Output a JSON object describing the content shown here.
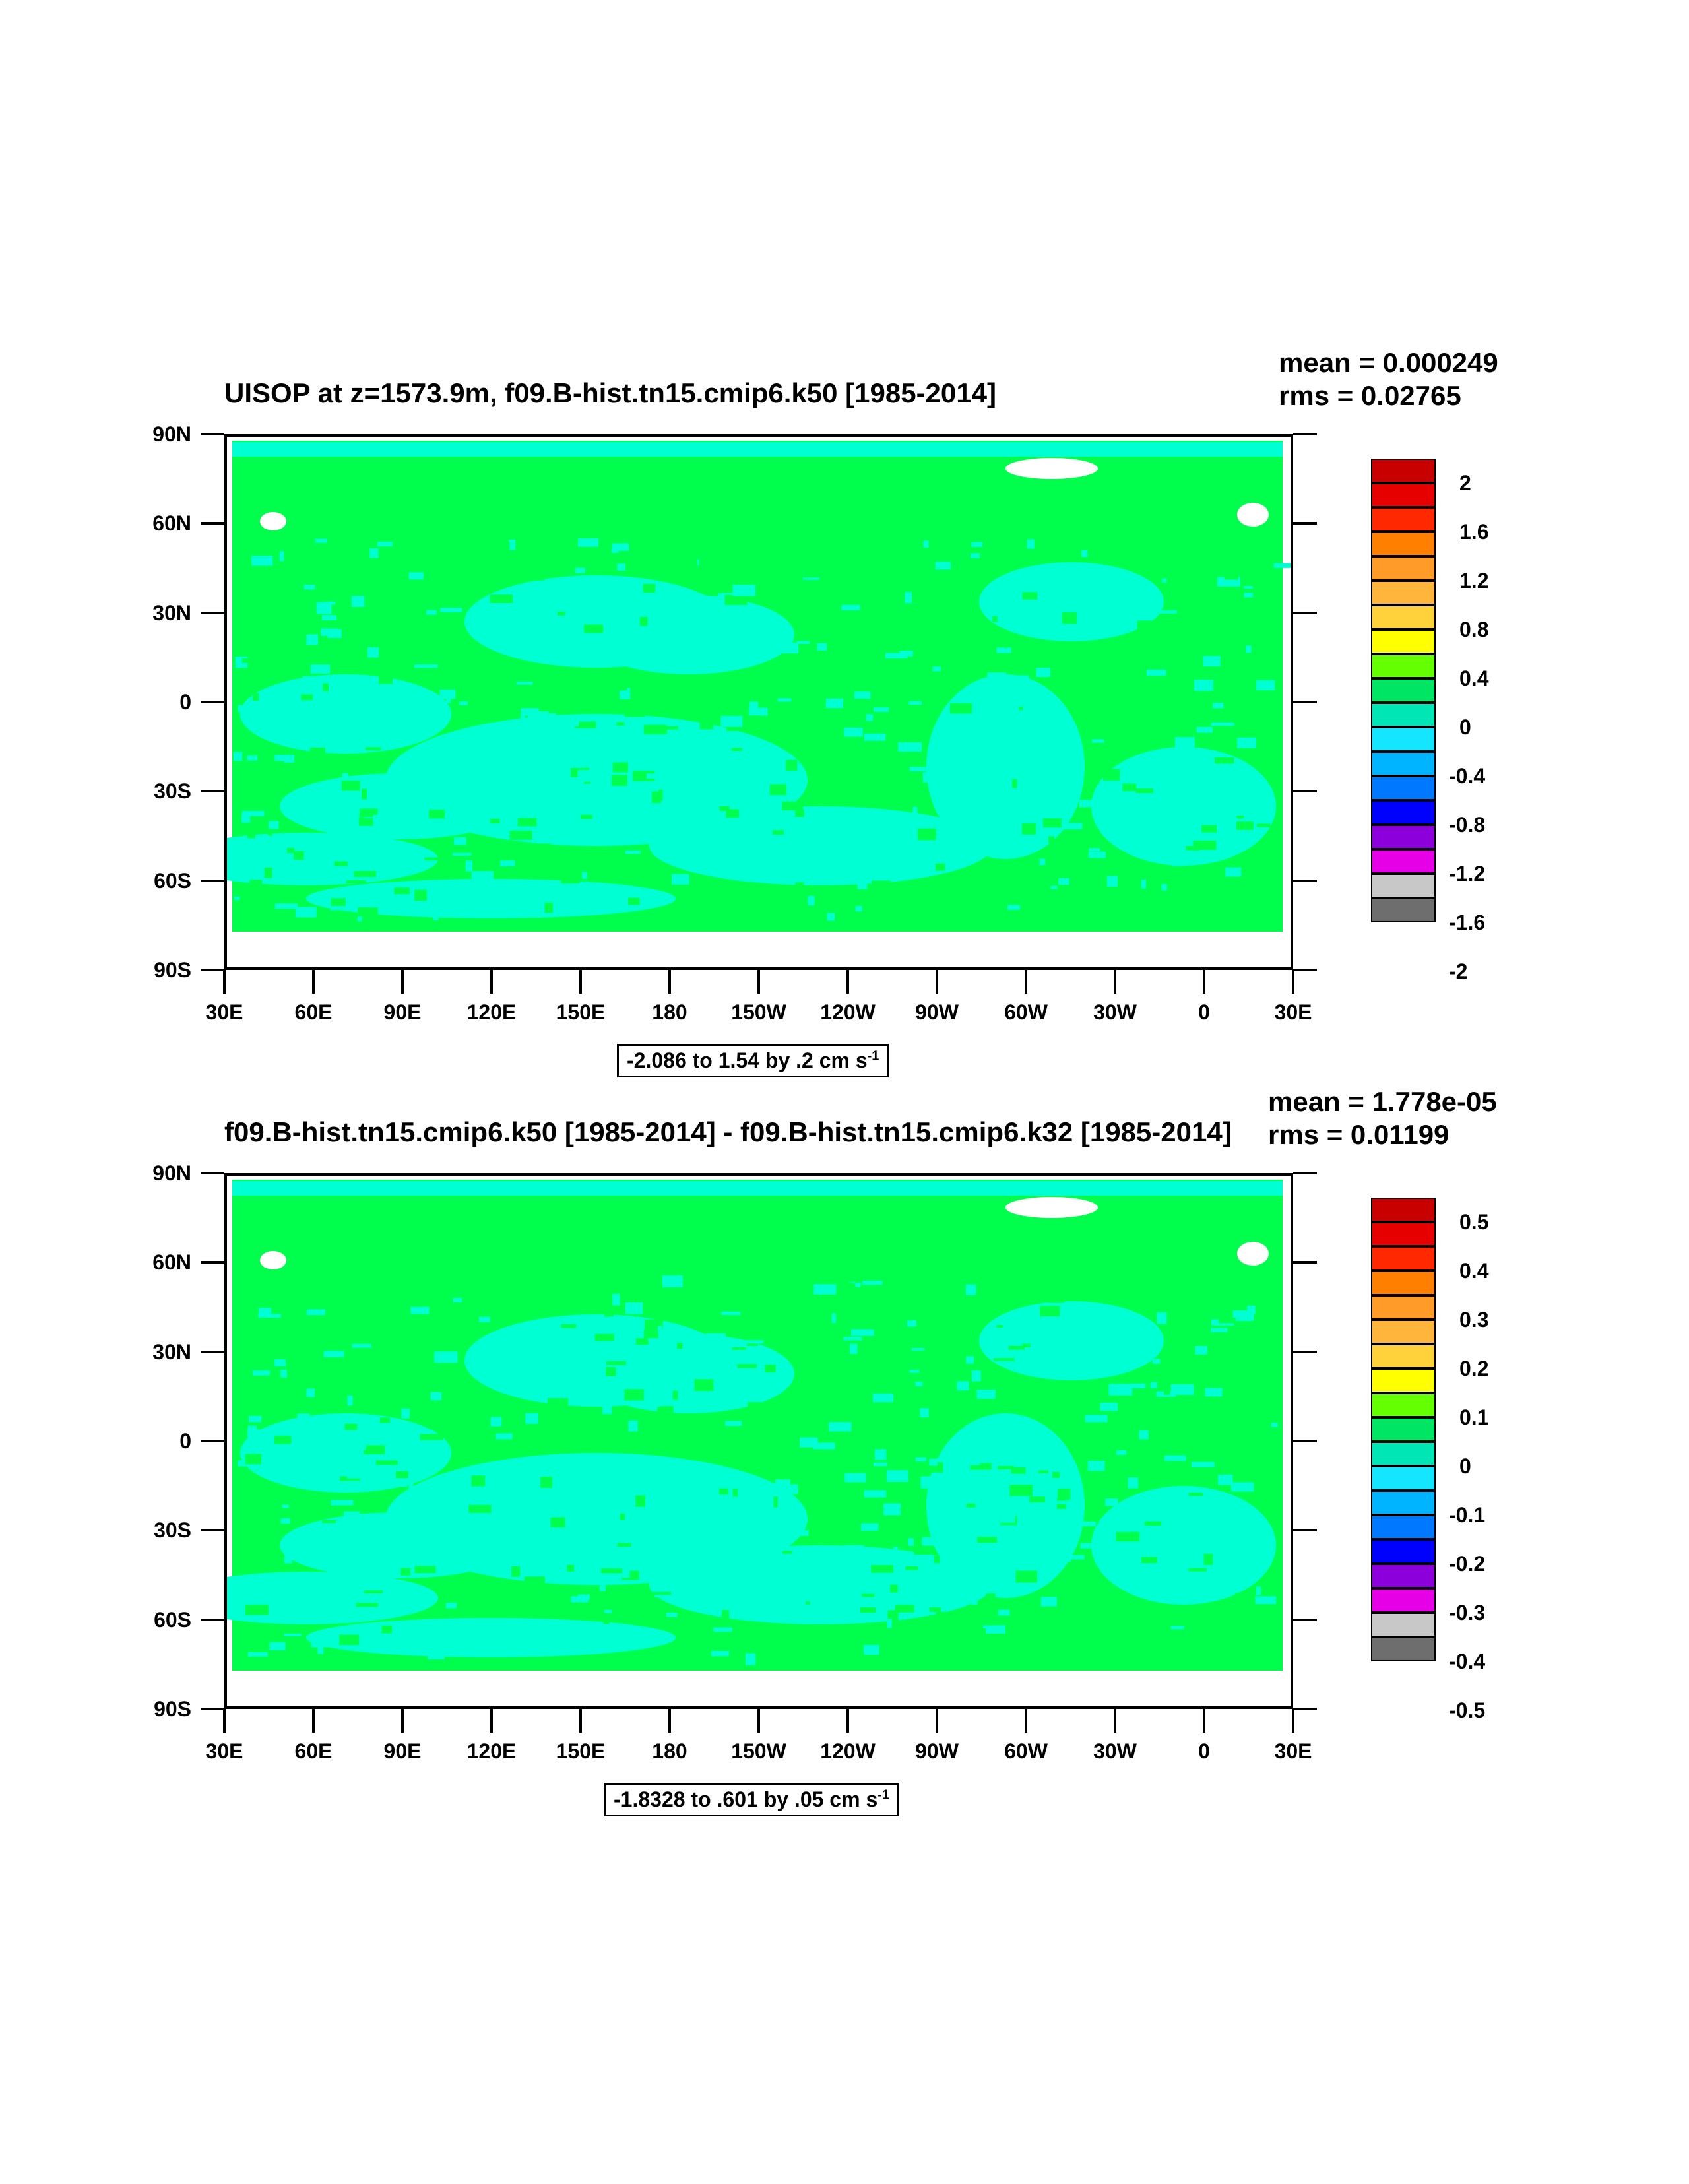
{
  "panels": [
    {
      "title": "UISOP at z=1573.9m, f09.B-hist.tn15.cmip6.k50 [1985-2014]",
      "mean_label": "mean = 0.000249",
      "rms_label": "rms = 0.02765",
      "range_label": "-2.086 to 1.54 by .2 cm s",
      "range_unit_exp": "-1",
      "colorbar_labels": [
        "2",
        "1.6",
        "1.2",
        "0.8",
        "0.4",
        "0",
        "-0.4",
        "-0.8",
        "-1.2",
        "-1.6",
        "-2"
      ]
    },
    {
      "title": "f09.B-hist.tn15.cmip6.k50 [1985-2014] - f09.B-hist.tn15.cmip6.k32 [1985-2014]",
      "mean_label": "mean = 1.778e-05",
      "rms_label": "rms = 0.01199",
      "range_label": "-1.8328 to .601 by .05 cm s",
      "range_unit_exp": "-1",
      "colorbar_labels": [
        "0.5",
        "0.4",
        "0.3",
        "0.2",
        "0.1",
        "0",
        "-0.1",
        "-0.2",
        "-0.3",
        "-0.4",
        "-0.5"
      ]
    }
  ],
  "lat_labels": [
    "90N",
    "60N",
    "30N",
    "0",
    "30S",
    "60S",
    "90S"
  ],
  "lon_labels": [
    "30E",
    "60E",
    "90E",
    "120E",
    "150E",
    "180",
    "150W",
    "120W",
    "90W",
    "60W",
    "30W",
    "0",
    "30E"
  ],
  "colorbar_colors": [
    "#c80000",
    "#e60000",
    "#ff2800",
    "#ff7f00",
    "#ff9b28",
    "#ffb43c",
    "#ffd23c",
    "#ffff00",
    "#64ff00",
    "#00e664",
    "#00e6b4",
    "#14e6ff",
    "#00b4ff",
    "#0078ff",
    "#0000ff",
    "#8c00dc",
    "#e600e6",
    "#c8c8c8",
    "#6e6e6e"
  ],
  "colors": {
    "land_green": "#00ff4c",
    "ocean_cyan": "#00ffd2",
    "missing_white": "#ffffff"
  }
}
